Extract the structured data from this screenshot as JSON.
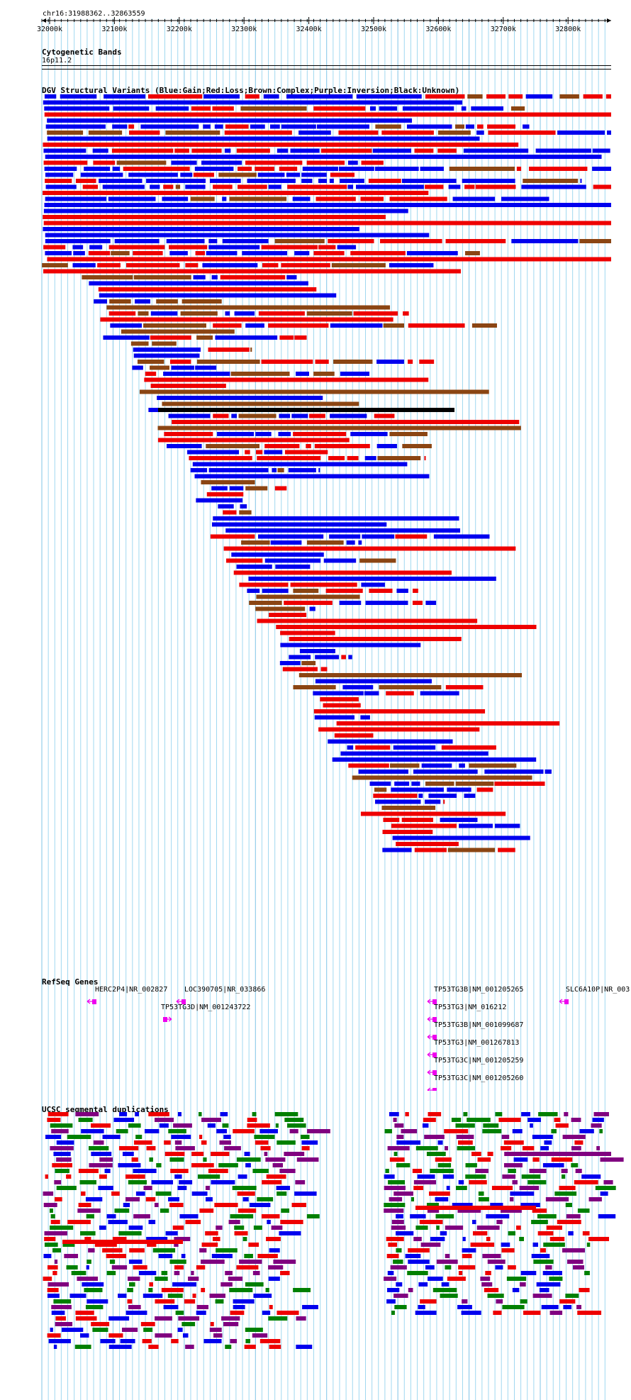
{
  "coords": {
    "label": "chr16:31988362..32863559"
  },
  "ruler": {
    "ticks": [
      "32000k",
      "32100k",
      "32200k",
      "32300k",
      "32400k",
      "32500k",
      "32600k",
      "32700k",
      "32800k"
    ]
  },
  "tracks": {
    "cytoband": {
      "title": "Cytogenetic Bands",
      "band": "16p11.2"
    },
    "dgv": {
      "title": "DGV Structural Variants (Blue:Gain;Red:Loss;Brown:Complex;Purple:Inversion;Black:Unknown)"
    },
    "refseq": {
      "title": "RefSeq Genes",
      "genes": [
        {
          "label": "HERC2P4|NR_002827",
          "strand": "-"
        },
        {
          "label": "LOC390705|NR_033866",
          "strand": "-"
        },
        {
          "label": "TP53TG3D|NM_001243722",
          "strand": "+"
        },
        {
          "label": "TP53TG3B|NM_001205265",
          "strand": "-"
        },
        {
          "label": "TP53TG3|NM_016212",
          "strand": "-"
        },
        {
          "label": "TP53TG3B|NM_001099687",
          "strand": "-"
        },
        {
          "label": "TP53TG3|NM_001267813",
          "strand": "-"
        },
        {
          "label": "TP53TG3C|NM_001205259",
          "strand": "-"
        },
        {
          "label": "TP53TG3C|NM_001205260",
          "strand": "-"
        },
        {
          "label": "SLC6A10P|NR_003",
          "strand": "-"
        }
      ]
    },
    "segdup": {
      "title": "UCSC segmental duplications"
    }
  },
  "colors": {
    "gain": "#0000ee",
    "loss": "#ee0000",
    "complex": "#8b4513",
    "inversion": "#800080",
    "unknown": "#000000",
    "gene": "#ee00ee",
    "segdup_green": "#008000",
    "gridline": "#a0d8f0"
  }
}
